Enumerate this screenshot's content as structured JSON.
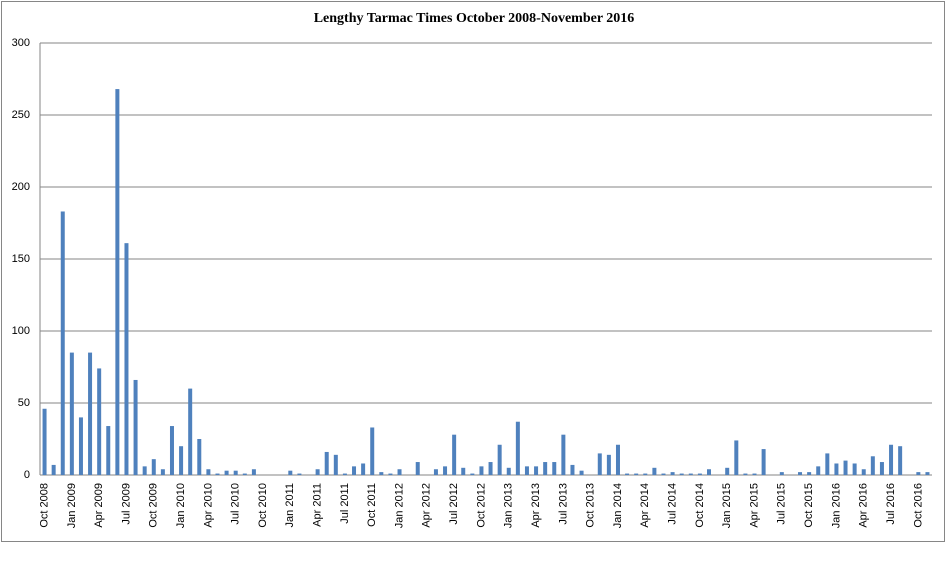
{
  "chart_data": {
    "type": "bar",
    "title": "Lengthy Tarmac Times October 2008-November 2016",
    "categories": [
      "Oct 2008",
      null,
      null,
      "Jan 2009",
      null,
      null,
      "Apr 2009",
      null,
      null,
      "Jul 2009",
      null,
      null,
      "Oct 2009",
      null,
      null,
      "Jan 2010",
      null,
      null,
      "Apr 2010",
      null,
      null,
      "Jul 2010",
      null,
      null,
      "Oct 2010",
      null,
      null,
      "Jan 2011",
      null,
      null,
      "Apr 2011",
      null,
      null,
      "Jul 2011",
      null,
      null,
      "Oct 2011",
      null,
      null,
      "Jan 2012",
      null,
      null,
      "Apr 2012",
      null,
      null,
      "Jul 2012",
      null,
      null,
      "Oct 2012",
      null,
      null,
      "Jan 2013",
      null,
      null,
      "Apr 2013",
      null,
      null,
      "Jul 2013",
      null,
      null,
      "Oct 2013",
      null,
      null,
      "Jan 2014",
      null,
      null,
      "Apr 2014",
      null,
      null,
      "Jul 2014",
      null,
      null,
      "Oct 2014",
      null,
      null,
      "Jan 2015",
      null,
      null,
      "Apr 2015",
      null,
      null,
      "Jul 2015",
      null,
      null,
      "Oct 2015",
      null,
      null,
      "Jan 2016",
      null,
      null,
      "Apr 2016",
      null,
      null,
      "Jul 2016",
      null,
      null,
      "Oct 2016",
      null
    ],
    "values": [
      46,
      7,
      183,
      85,
      40,
      85,
      74,
      34,
      268,
      161,
      66,
      6,
      11,
      4,
      34,
      20,
      60,
      25,
      4,
      1,
      3,
      3,
      1,
      4,
      0,
      0,
      0,
      3,
      1,
      0,
      4,
      16,
      14,
      1,
      6,
      8,
      33,
      2,
      1,
      4,
      0,
      9,
      0,
      4,
      6,
      28,
      5,
      1,
      6,
      9,
      21,
      5,
      37,
      6,
      6,
      9,
      9,
      28,
      7,
      3,
      0,
      15,
      14,
      21,
      1,
      1,
      1,
      5,
      1,
      2,
      1,
      1,
      1,
      4,
      0,
      5,
      24,
      1,
      1,
      18,
      0,
      2,
      0,
      2,
      2,
      6,
      15,
      8,
      10,
      8,
      4,
      13,
      9,
      21,
      20,
      0,
      2,
      2
    ],
    "color": "#4f81bd",
    "ylim": [
      0,
      300
    ],
    "yticks": [
      0,
      50,
      100,
      150,
      200,
      250,
      300
    ],
    "grid": true
  }
}
